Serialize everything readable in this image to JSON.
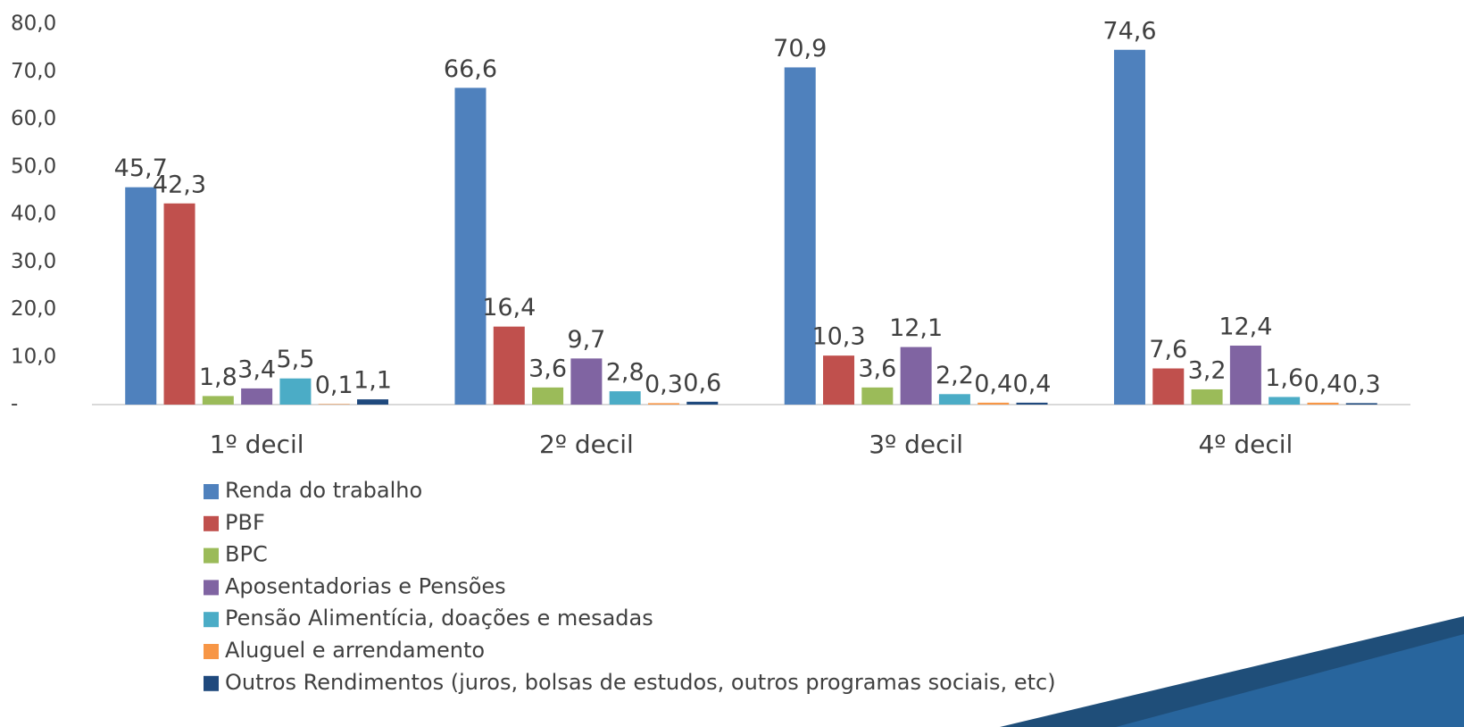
{
  "chart_data": {
    "type": "bar",
    "categories": [
      "1º decil",
      "2º decil",
      "3º decil",
      "4º decil"
    ],
    "series": [
      {
        "name": "Renda do trabalho",
        "color": "#4f81bd",
        "values": [
          45.7,
          66.6,
          70.9,
          74.6
        ],
        "value_labels": [
          "45,7",
          "66,6",
          "70,9",
          "74,6"
        ]
      },
      {
        "name": "PBF",
        "color": "#c0504d",
        "values": [
          42.3,
          16.4,
          10.3,
          7.6
        ],
        "value_labels": [
          "42,3",
          "16,4",
          "10,3",
          "7,6"
        ]
      },
      {
        "name": "BPC",
        "color": "#9bbb59",
        "values": [
          1.8,
          3.6,
          3.6,
          3.2
        ],
        "value_labels": [
          "1,8",
          "3,6",
          "3,6",
          "3,2"
        ]
      },
      {
        "name": "Aposentadorias e Pensões",
        "color": "#8064a2",
        "values": [
          3.4,
          9.7,
          12.1,
          12.4
        ],
        "value_labels": [
          "3,4",
          "9,7",
          "12,1",
          "12,4"
        ]
      },
      {
        "name": "Pensão Alimentícia, doações e mesadas",
        "color": "#4bacc6",
        "values": [
          5.5,
          2.8,
          2.2,
          1.6
        ],
        "value_labels": [
          "5,5",
          "2,8",
          "2,2",
          "1,6"
        ]
      },
      {
        "name": "Aluguel e arrendamento",
        "color": "#f79646",
        "values": [
          0.1,
          0.3,
          0.4,
          0.4
        ],
        "value_labels": [
          "0,1",
          "0,3",
          "0,4",
          "0,4"
        ]
      },
      {
        "name": "Outros Rendimentos (juros, bolsas de estudos, outros programas sociais, etc)",
        "color": "#1f497d",
        "values": [
          1.1,
          0.6,
          0.4,
          0.3
        ],
        "value_labels": [
          "1,1",
          "0,6",
          "0,4",
          "0,3"
        ]
      }
    ],
    "ylim": [
      0,
      80
    ],
    "yticks": [
      {
        "value": 0,
        "label": "-"
      },
      {
        "value": 10,
        "label": "10,0"
      },
      {
        "value": 20,
        "label": "20,0"
      },
      {
        "value": 30,
        "label": "30,0"
      },
      {
        "value": 40,
        "label": "40,0"
      },
      {
        "value": 50,
        "label": "50,0"
      },
      {
        "value": 60,
        "label": "60,0"
      },
      {
        "value": 70,
        "label": "70,0"
      },
      {
        "value": 80,
        "label": "80,0"
      }
    ],
    "legend": "bottom"
  }
}
